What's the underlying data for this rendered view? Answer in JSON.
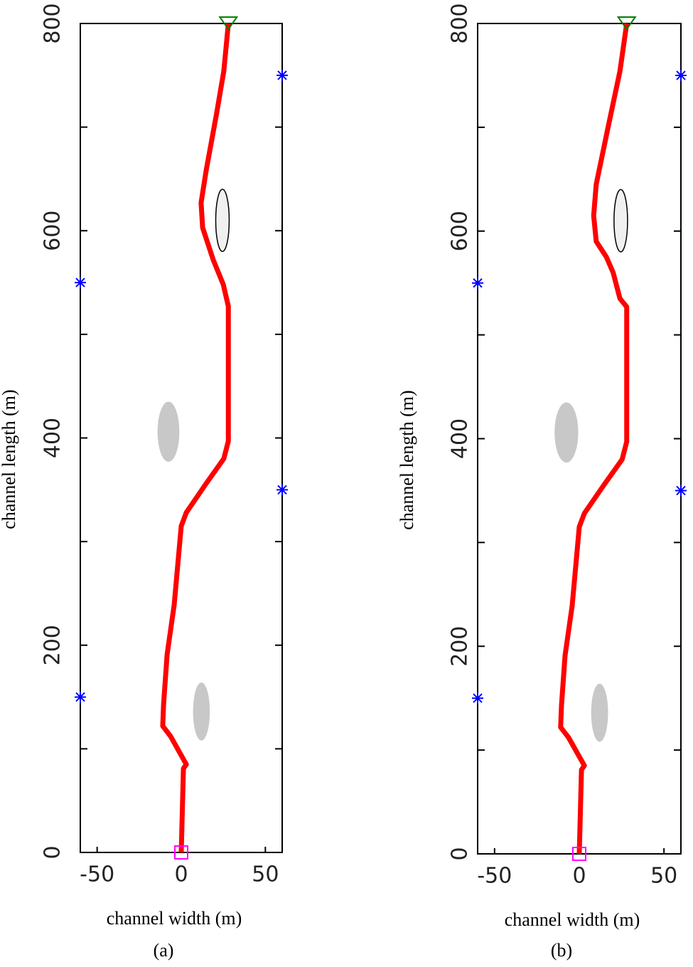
{
  "chart_data": [
    {
      "type": "line",
      "xlabel": "channel width (m)",
      "ylabel": "channel length  (m)",
      "caption": "(a)",
      "xlim": [
        -60,
        60
      ],
      "ylim": [
        0,
        800
      ],
      "xticks": [
        -50,
        0,
        50
      ],
      "yticks": [
        0,
        200,
        400,
        600,
        800
      ],
      "yminor": [
        100,
        300,
        500,
        700
      ],
      "path": {
        "color": "#ff0000",
        "x": [
          0,
          1.3,
          3,
          -6.3,
          -11,
          -10.5,
          -8.4,
          -4.2,
          0,
          3,
          14.8,
          25.3,
          28,
          28,
          25,
          19,
          12.7,
          11.8,
          14.8,
          21,
          25.3,
          28
        ],
        "y": [
          0,
          81,
          85,
          112,
          122,
          143,
          191,
          239,
          315,
          328,
          356,
          380,
          397,
          527,
          548,
          572,
          603,
          627,
          658,
          713,
          754,
          800
        ]
      },
      "waypoints": {
        "color": "#0000ff",
        "x": [
          -60,
          -60,
          60,
          60
        ],
        "y": [
          150,
          550,
          350,
          750
        ]
      },
      "start": {
        "color": "#ff00ff",
        "x": 0,
        "y": 0
      },
      "goal": {
        "color": "#008000",
        "x": 28,
        "y": 800
      },
      "obstacles": [
        {
          "x": -7.6,
          "y": 406,
          "rx": 6.5,
          "ry": 29,
          "fill": "#c8c8c8"
        },
        {
          "x": 12,
          "y": 136,
          "rx": 5,
          "ry": 28,
          "fill": "#c8c8c8"
        },
        {
          "x": 24.5,
          "y": 610,
          "rx": 4,
          "ry": 30,
          "fill": "#f0f0f0",
          "stroke": "#000000"
        }
      ]
    },
    {
      "type": "line",
      "xlabel": "channel width (m)",
      "ylabel": "channel length  (m)",
      "caption": "(b)",
      "xlim": [
        -60,
        60
      ],
      "ylim": [
        0,
        800
      ],
      "xticks": [
        -50,
        0,
        50
      ],
      "yticks": [
        0,
        200,
        400,
        600,
        800
      ],
      "yminor": [
        100,
        300,
        500,
        700
      ],
      "path": {
        "color": "#ff0000",
        "x": [
          0,
          1.3,
          3,
          -6.3,
          -11,
          -10.5,
          -8.4,
          -4.2,
          0,
          3,
          14.8,
          25.3,
          28,
          28,
          24,
          20,
          16,
          10,
          8.5,
          10,
          17,
          24,
          28
        ],
        "y": [
          0,
          81,
          85,
          112,
          122,
          143,
          191,
          239,
          315,
          328,
          356,
          380,
          397,
          527,
          535,
          560,
          575,
          590,
          615,
          645,
          700,
          754,
          800
        ]
      },
      "waypoints": {
        "color": "#0000ff",
        "x": [
          -60,
          -60,
          60,
          60
        ],
        "y": [
          150,
          550,
          350,
          750
        ]
      },
      "start": {
        "color": "#ff00ff",
        "x": 0,
        "y": 0
      },
      "goal": {
        "color": "#008000",
        "x": 28,
        "y": 800
      },
      "obstacles": [
        {
          "x": -7.6,
          "y": 406,
          "rx": 7,
          "ry": 29,
          "fill": "#c8c8c8"
        },
        {
          "x": 12,
          "y": 136,
          "rx": 5,
          "ry": 28,
          "fill": "#c8c8c8"
        },
        {
          "x": 24.5,
          "y": 610,
          "rx": 4,
          "ry": 30,
          "fill": "#f0f0f0",
          "stroke": "#000000"
        }
      ]
    }
  ]
}
